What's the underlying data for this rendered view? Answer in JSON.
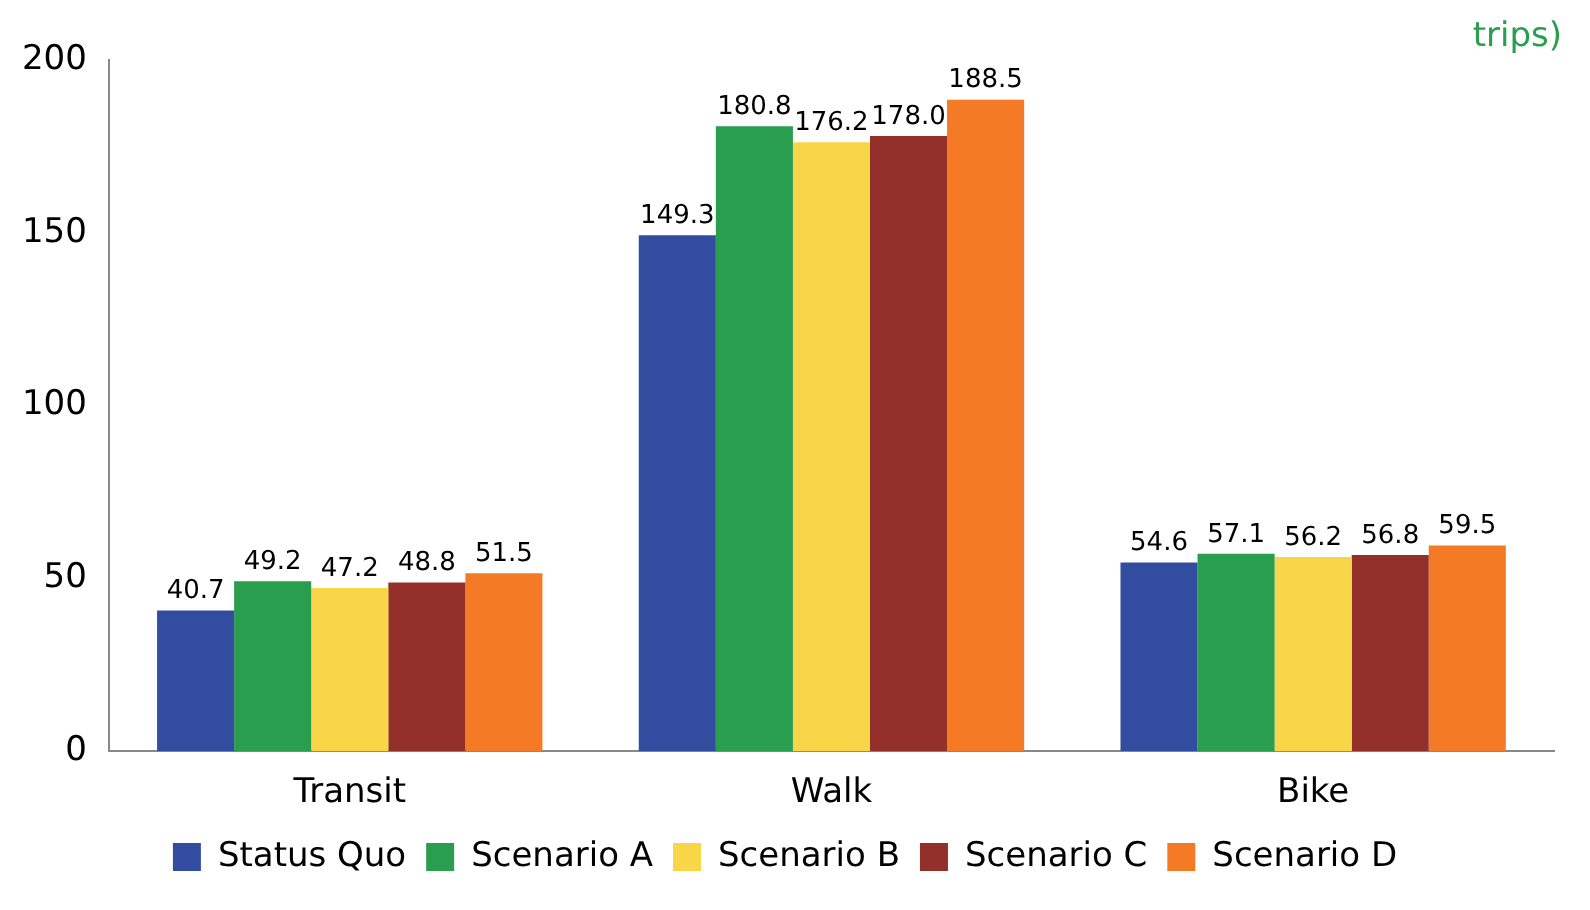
{
  "chart_data": {
    "type": "bar",
    "categories": [
      "Transit",
      "Walk",
      "Bike"
    ],
    "series": [
      {
        "name": "Status Quo",
        "color": "#324ca0",
        "values": [
          40.7,
          149.3,
          54.6
        ],
        "value_labels": [
          "40.7",
          "149.3",
          "54.6"
        ]
      },
      {
        "name": "Scenario A",
        "color": "#2a9e4f",
        "values": [
          49.2,
          180.8,
          57.1
        ],
        "value_labels": [
          "49.2",
          "180.8",
          "57.1"
        ]
      },
      {
        "name": "Scenario B",
        "color": "#f8d648",
        "values": [
          47.2,
          176.2,
          56.2
        ],
        "value_labels": [
          "47.2",
          "176.2",
          "56.2"
        ]
      },
      {
        "name": "Scenario C",
        "color": "#93302a",
        "values": [
          48.8,
          178.0,
          56.8
        ],
        "value_labels": [
          "48.8",
          "178.0",
          "56.8"
        ]
      },
      {
        "name": "Scenario D",
        "color": "#f47a25",
        "values": [
          51.5,
          188.5,
          59.5
        ],
        "value_labels": [
          "51.5",
          "188.5",
          "59.5"
        ]
      }
    ],
    "ylim": [
      0,
      200
    ],
    "yticks": [
      0,
      50,
      100,
      150,
      200
    ],
    "grid": false,
    "legend": "bottom",
    "annotations": [
      "trips)"
    ]
  }
}
